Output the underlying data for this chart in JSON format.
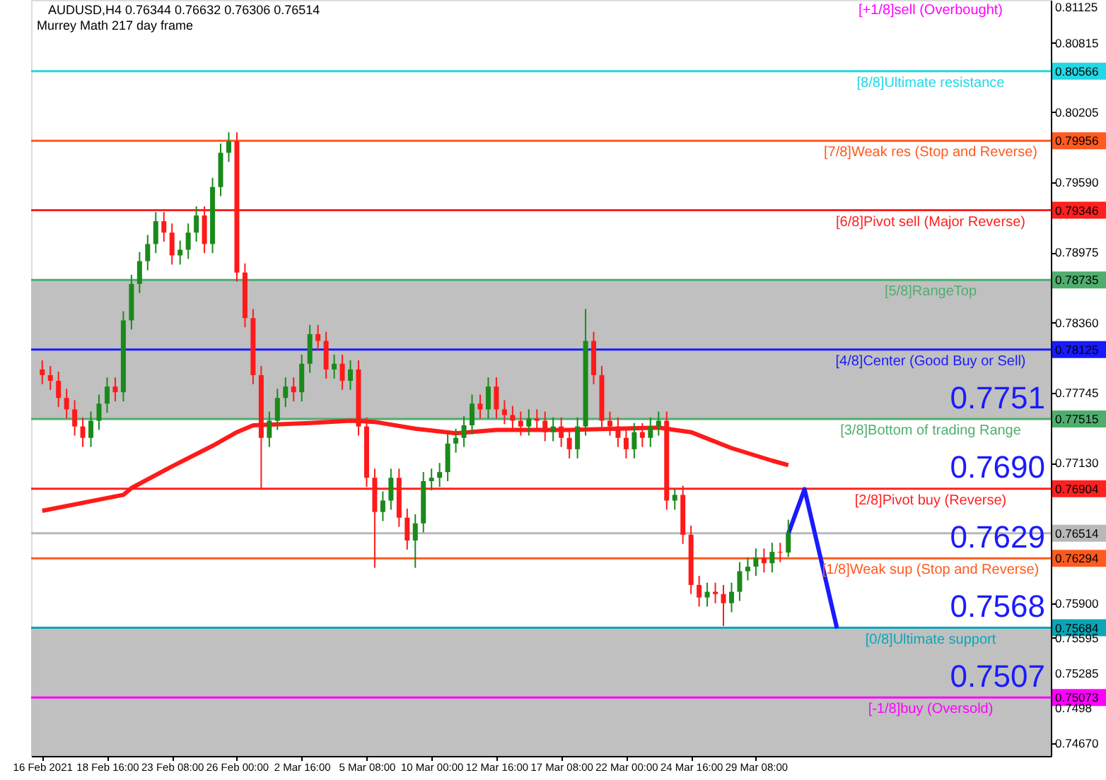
{
  "chart_data": {
    "type": "candlestick",
    "title": "AUDUSD,H4 0.76344 0.76632 0.76306 0.76514",
    "subtitle": "Murrey Math 217 day frame",
    "categories": [
      "16 Feb 2021",
      null,
      null,
      null,
      null,
      null,
      null,
      null,
      "18 Feb 16:00",
      null,
      null,
      null,
      null,
      null,
      null,
      null,
      "23 Feb 08:00",
      null,
      null,
      null,
      null,
      null,
      null,
      null,
      "26 Feb 00:00",
      null,
      null,
      null,
      null,
      null,
      null,
      null,
      "2 Mar 16:00",
      null,
      null,
      null,
      null,
      null,
      null,
      null,
      "5 Mar 08:00",
      null,
      null,
      null,
      null,
      null,
      null,
      null,
      "10 Mar 00:00",
      null,
      null,
      null,
      null,
      null,
      null,
      null,
      "12 Mar 16:00",
      null,
      null,
      null,
      null,
      null,
      null,
      null,
      "17 Mar 08:00",
      null,
      null,
      null,
      null,
      null,
      null,
      null,
      "22 Mar 00:00",
      null,
      null,
      null,
      null,
      null,
      null,
      null,
      "24 Mar 16:00",
      null,
      null,
      null,
      null,
      null,
      null,
      null,
      "29 Mar 08:00",
      null,
      null,
      null,
      null,
      null,
      null,
      null,
      null,
      null,
      null,
      null,
      null,
      null,
      null,
      null,
      null,
      null,
      null,
      null,
      null,
      null,
      null,
      null,
      null,
      null,
      null,
      null,
      null,
      null,
      null,
      null,
      null,
      null,
      null,
      null
    ],
    "ohlc": [
      [
        0.7795,
        0.7803,
        0.7782,
        0.779
      ],
      [
        0.779,
        0.7798,
        0.7777,
        0.7785
      ],
      [
        0.7785,
        0.7793,
        0.7762,
        0.777
      ],
      [
        0.777,
        0.7778,
        0.7752,
        0.776
      ],
      [
        0.776,
        0.7768,
        0.7737,
        0.7745
      ],
      [
        0.7745,
        0.7753,
        0.7727,
        0.7735
      ],
      [
        0.7735,
        0.7758,
        0.7727,
        0.775
      ],
      [
        0.775,
        0.7773,
        0.7742,
        0.7765
      ],
      [
        0.7765,
        0.7788,
        0.7757,
        0.778
      ],
      [
        0.778,
        0.7788,
        0.7767,
        0.7775
      ],
      [
        0.7775,
        0.7846,
        0.7767,
        0.7838
      ],
      [
        0.7838,
        0.7878,
        0.783,
        0.787
      ],
      [
        0.787,
        0.7898,
        0.7862,
        0.789
      ],
      [
        0.789,
        0.7913,
        0.7882,
        0.7905
      ],
      [
        0.7905,
        0.7933,
        0.7897,
        0.7925
      ],
      [
        0.7925,
        0.7933,
        0.7907,
        0.7915
      ],
      [
        0.7915,
        0.7923,
        0.7887,
        0.7895
      ],
      [
        0.7895,
        0.7908,
        0.7887,
        0.79
      ],
      [
        0.79,
        0.7923,
        0.7892,
        0.7915
      ],
      [
        0.7915,
        0.7938,
        0.7907,
        0.793
      ],
      [
        0.793,
        0.7938,
        0.7897,
        0.7905
      ],
      [
        0.7905,
        0.7963,
        0.7897,
        0.7955
      ],
      [
        0.7955,
        0.7993,
        0.7947,
        0.7985
      ],
      [
        0.7985,
        0.8003,
        0.7977,
        0.7995
      ],
      [
        0.7995,
        0.8003,
        0.7872,
        0.788
      ],
      [
        0.788,
        0.7888,
        0.7832,
        0.784
      ],
      [
        0.784,
        0.7848,
        0.7782,
        0.779
      ],
      [
        0.779,
        0.7798,
        0.769,
        0.7735
      ],
      [
        0.7735,
        0.7758,
        0.7727,
        0.775
      ],
      [
        0.775,
        0.7778,
        0.7742,
        0.777
      ],
      [
        0.777,
        0.7788,
        0.7762,
        0.778
      ],
      [
        0.778,
        0.7788,
        0.7767,
        0.7775
      ],
      [
        0.7775,
        0.7808,
        0.7767,
        0.78
      ],
      [
        0.78,
        0.7834,
        0.7792,
        0.7826
      ],
      [
        0.7826,
        0.7834,
        0.7812,
        0.782
      ],
      [
        0.782,
        0.7828,
        0.7787,
        0.7795
      ],
      [
        0.7795,
        0.7808,
        0.7787,
        0.78
      ],
      [
        0.78,
        0.7808,
        0.7777,
        0.7785
      ],
      [
        0.7785,
        0.7803,
        0.7777,
        0.7795
      ],
      [
        0.7795,
        0.7803,
        0.7737,
        0.7745
      ],
      [
        0.7745,
        0.7753,
        0.7692,
        0.77
      ],
      [
        0.77,
        0.7708,
        0.7621,
        0.767
      ],
      [
        0.767,
        0.7688,
        0.7662,
        0.768
      ],
      [
        0.768,
        0.7708,
        0.7672,
        0.77
      ],
      [
        0.77,
        0.7708,
        0.7657,
        0.7665
      ],
      [
        0.7665,
        0.7673,
        0.7637,
        0.7645
      ],
      [
        0.7645,
        0.7668,
        0.7621,
        0.766
      ],
      [
        0.766,
        0.7705,
        0.7652,
        0.7697
      ],
      [
        0.7697,
        0.7708,
        0.7689,
        0.77
      ],
      [
        0.77,
        0.7713,
        0.7692,
        0.7705
      ],
      [
        0.7705,
        0.7738,
        0.7697,
        0.773
      ],
      [
        0.773,
        0.7743,
        0.7722,
        0.7735
      ],
      [
        0.7735,
        0.7754,
        0.7727,
        0.7746
      ],
      [
        0.7746,
        0.7773,
        0.7738,
        0.7765
      ],
      [
        0.7765,
        0.7773,
        0.7752,
        0.776
      ],
      [
        0.776,
        0.7788,
        0.7752,
        0.778
      ],
      [
        0.778,
        0.7788,
        0.7752,
        0.776
      ],
      [
        0.776,
        0.7768,
        0.7747,
        0.7755
      ],
      [
        0.7755,
        0.7763,
        0.7742,
        0.775
      ],
      [
        0.775,
        0.7758,
        0.7737,
        0.7745
      ],
      [
        0.7745,
        0.776,
        0.7737,
        0.7752
      ],
      [
        0.7752,
        0.776,
        0.7742,
        0.775
      ],
      [
        0.775,
        0.7758,
        0.7732,
        0.774
      ],
      [
        0.774,
        0.7753,
        0.7732,
        0.7745
      ],
      [
        0.7745,
        0.7753,
        0.7727,
        0.7735
      ],
      [
        0.7735,
        0.7743,
        0.7717,
        0.7725
      ],
      [
        0.7725,
        0.7753,
        0.7717,
        0.7745
      ],
      [
        0.7745,
        0.7848,
        0.7737,
        0.782
      ],
      [
        0.782,
        0.7828,
        0.7782,
        0.779
      ],
      [
        0.779,
        0.7798,
        0.7742,
        0.775
      ],
      [
        0.775,
        0.7758,
        0.7737,
        0.7745
      ],
      [
        0.7745,
        0.7753,
        0.7727,
        0.7735
      ],
      [
        0.7735,
        0.7743,
        0.7717,
        0.7725
      ],
      [
        0.7725,
        0.7748,
        0.7717,
        0.774
      ],
      [
        0.774,
        0.7748,
        0.7727,
        0.7735
      ],
      [
        0.7735,
        0.7753,
        0.7727,
        0.7745
      ],
      [
        0.7745,
        0.7758,
        0.7737,
        0.775
      ],
      [
        0.775,
        0.7758,
        0.7672,
        0.768
      ],
      [
        0.768,
        0.769,
        0.7672,
        0.7685
      ],
      [
        0.7685,
        0.7693,
        0.7642,
        0.765
      ],
      [
        0.765,
        0.7658,
        0.7598,
        0.7606
      ],
      [
        0.7606,
        0.7614,
        0.7587,
        0.7595
      ],
      [
        0.7595,
        0.7608,
        0.7587,
        0.76
      ],
      [
        0.76,
        0.7608,
        0.759,
        0.7598
      ],
      [
        0.7598,
        0.7606,
        0.757,
        0.759
      ],
      [
        0.759,
        0.7608,
        0.7582,
        0.76
      ],
      [
        0.76,
        0.7626,
        0.7592,
        0.7618
      ],
      [
        0.7618,
        0.763,
        0.761,
        0.7622
      ],
      [
        0.7622,
        0.7638,
        0.7614,
        0.763
      ],
      [
        0.763,
        0.7638,
        0.7617,
        0.7625
      ],
      [
        0.7625,
        0.7643,
        0.7617,
        0.7635
      ],
      [
        0.7635,
        0.7643,
        0.7626,
        0.76344
      ],
      [
        0.76344,
        0.76632,
        0.76306,
        0.76514
      ],
      null,
      null,
      null,
      null,
      null,
      null,
      null,
      null,
      null,
      null,
      null,
      null,
      null,
      null,
      null,
      null,
      null,
      null,
      null,
      null,
      null,
      null,
      null,
      null,
      null,
      null,
      null,
      null,
      null,
      null,
      null
    ],
    "colors": [
      "#ff1a1a",
      "#ff1a1a",
      "#ff1a1a",
      "#ff1a1a",
      "#ff1a1a",
      "#ff1a1a",
      "#1a8a1a",
      "#1a8a1a",
      "#1a8a1a",
      "#ff1a1a",
      "#1a8a1a",
      "#1a8a1a",
      "#1a8a1a",
      "#1a8a1a",
      "#1a8a1a",
      "#ff1a1a",
      "#ff1a1a",
      "#1a8a1a",
      "#1a8a1a",
      "#1a8a1a",
      "#ff1a1a",
      "#1a8a1a",
      "#1a8a1a",
      "#1a8a1a",
      "#ff1a1a",
      "#ff1a1a",
      "#ff1a1a",
      "#ff1a1a",
      "#1a8a1a",
      "#1a8a1a",
      "#1a8a1a",
      "#ff1a1a",
      "#1a8a1a",
      "#1a8a1a",
      "#ff1a1a",
      "#ff1a1a",
      "#1a8a1a",
      "#ff1a1a",
      "#1a8a1a",
      "#ff1a1a",
      "#ff1a1a",
      "#ff1a1a",
      "#1a8a1a",
      "#1a8a1a",
      "#ff1a1a",
      "#ff1a1a",
      "#1a8a1a",
      "#1a8a1a",
      "#1a8a1a",
      "#1a8a1a",
      "#1a8a1a",
      "#1a8a1a",
      "#1a8a1a",
      "#1a8a1a",
      "#ff1a1a",
      "#1a8a1a",
      "#ff1a1a",
      "#ff1a1a",
      "#ff1a1a",
      "#ff1a1a",
      "#1a8a1a",
      "#ff1a1a",
      "#ff1a1a",
      "#1a8a1a",
      "#ff1a1a",
      "#ff1a1a",
      "#1a8a1a",
      "#1a8a1a",
      "#ff1a1a",
      "#ff1a1a",
      "#ff1a1a",
      "#ff1a1a",
      "#ff1a1a",
      "#1a8a1a",
      "#ff1a1a",
      "#1a8a1a",
      "#1a8a1a",
      "#ff1a1a",
      "#1a8a1a",
      "#ff1a1a",
      "#ff1a1a",
      "#ff1a1a",
      "#1a8a1a",
      "#ff1a1a",
      "#ff1a1a",
      "#1a8a1a",
      "#1a8a1a",
      "#1a8a1a",
      "#1a8a1a",
      "#ff1a1a",
      "#1a8a1a",
      "#ff1a1a",
      "#1a8a1a",
      null,
      null,
      null,
      null,
      null,
      null,
      null,
      null,
      null,
      null,
      null,
      null,
      null,
      null,
      null,
      null,
      null,
      null,
      null,
      null,
      null,
      null,
      null,
      null,
      null,
      null,
      null,
      null,
      null,
      null,
      null
    ],
    "series": [
      {
        "type": "line",
        "color": "#ff1a1a",
        "values": [
          0.7671,
          null,
          null,
          null,
          null,
          null,
          null,
          null,
          null,
          null,
          0.7685,
          0.7691,
          null,
          null,
          null,
          null,
          0.771,
          null,
          null,
          null,
          null,
          0.7728,
          null,
          null,
          0.774,
          null,
          0.7746,
          null,
          null,
          null,
          null,
          null,
          null,
          0.7748,
          null,
          null,
          null,
          null,
          0.775,
          null,
          null,
          0.7749,
          null,
          null,
          null,
          null,
          0.7743,
          null,
          null,
          null,
          null,
          0.7739,
          null,
          null,
          null,
          null,
          0.7742,
          null,
          null,
          null,
          null,
          null,
          null,
          null,
          null,
          0.7742,
          null,
          null,
          null,
          null,
          null,
          null,
          null,
          null,
          null,
          null,
          0.7744,
          null,
          null,
          null,
          0.774,
          null,
          null,
          null,
          null,
          0.7726,
          null,
          null,
          null,
          null,
          0.7715,
          null,
          0.7711,
          null,
          null,
          null,
          null,
          null,
          null,
          null,
          null,
          null,
          null,
          null,
          null,
          null,
          null,
          null,
          null,
          null,
          null,
          null,
          null,
          null,
          null,
          null,
          null,
          null,
          null,
          null,
          null,
          null,
          null,
          null
        ]
      },
      {
        "type": "line",
        "color": "#1a1aff",
        "values": [
          null,
          null,
          null,
          null,
          null,
          null,
          null,
          null,
          null,
          null,
          null,
          null,
          null,
          null,
          null,
          null,
          null,
          null,
          null,
          null,
          null,
          null,
          null,
          null,
          null,
          null,
          null,
          null,
          null,
          null,
          null,
          null,
          null,
          null,
          null,
          null,
          null,
          null,
          null,
          null,
          null,
          null,
          null,
          null,
          null,
          null,
          null,
          null,
          null,
          null,
          null,
          null,
          null,
          null,
          null,
          null,
          null,
          null,
          null,
          null,
          null,
          null,
          null,
          null,
          null,
          null,
          null,
          null,
          null,
          null,
          null,
          null,
          null,
          null,
          null,
          null,
          null,
          null,
          null,
          null,
          null,
          null,
          null,
          null,
          null,
          null,
          null,
          null,
          null,
          null,
          null,
          null,
          0.7651,
          null,
          0.769,
          null,
          null,
          null,
          0.7568,
          null,
          null,
          null,
          null,
          null,
          null,
          null,
          null,
          null,
          null,
          null,
          null,
          null,
          null,
          null,
          null,
          null,
          null,
          null,
          null,
          null,
          null,
          null,
          null,
          null
        ]
      }
    ],
    "ylim": [
      0.7456,
      0.8119
    ],
    "yticks": [
      0.81125,
      0.80815,
      0.80566,
      0.80205,
      0.79956,
      {
        "value": 0.7959,
        "label": "0.79590"
      },
      0.79346,
      0.78975,
      0.78735,
      {
        "value": 0.7836,
        "label": "0.78360"
      },
      0.78125,
      0.77745,
      0.77515,
      {
        "value": 0.7713,
        "label": "0.77130"
      },
      0.76904,
      0.76514,
      0.76294,
      {
        "value": 0.759,
        "label": "0.75900"
      },
      0.75684,
      0.75595,
      0.75285,
      0.75073,
      0.7498,
      {
        "value": 0.7467,
        "label": "0.74670"
      }
    ],
    "bands": [
      {
        "axis": "y",
        "from": 0.77515,
        "to": 0.78735,
        "color": "#c0c0c0"
      },
      {
        "axis": "y",
        "from": 0.7456,
        "to": 0.75684,
        "color": "#c0c0c0"
      }
    ],
    "ref_lines": [
      {
        "axis": "y",
        "value": 0.80566,
        "label": "[8/8]Ultimate resistance",
        "color": "#22d8e6"
      },
      {
        "axis": "y",
        "value": 0.79956,
        "label": "[7/8]Weak res (Stop and Reverse)",
        "color": "#ff5a1f"
      },
      {
        "axis": "y",
        "value": 0.79346,
        "label": "[6/8]Pivot sell (Major Reverse)",
        "color": "#ff2020"
      },
      {
        "axis": "y",
        "value": 0.78735,
        "label": "[5/8]RangeTop",
        "color": "#4fae6d"
      },
      {
        "axis": "y",
        "value": 0.78125,
        "label": "[4/8]Center (Good Buy or Sell)",
        "color": "#1a1aff"
      },
      {
        "axis": "y",
        "value": 0.77515,
        "label": "[3/8]Bottom of trading Range",
        "color": "#4fae6d"
      },
      {
        "axis": "y",
        "value": 0.76904,
        "label": "[2/8]Pivot buy (Reverse)",
        "color": "#ff2020"
      },
      {
        "axis": "y",
        "value": 0.76514,
        "label": null,
        "color": "#b8b8b8"
      },
      {
        "axis": "y",
        "value": 0.76294,
        "label": "[1/8]Weak sup (Stop and Reverse)",
        "color": "#ff5a1f"
      },
      {
        "axis": "y",
        "value": 0.75684,
        "label": "[0/8]Ultimate support",
        "color": "#0aa6b6"
      },
      {
        "axis": "y",
        "value": 0.75073,
        "label": "[-1/8]buy (Oversold)",
        "color": "#ff00ff"
      }
    ],
    "annotations": [
      "[+1/8]sell (Overbought)",
      {
        "text": "0.7751",
        "y": 0.7751
      },
      {
        "text": "0.7690",
        "y": 0.769
      },
      {
        "text": "0.7629",
        "y": 0.7629
      },
      {
        "text": "0.7568",
        "y": 0.7568
      },
      {
        "text": "0.7507",
        "y": 0.7507
      }
    ]
  }
}
